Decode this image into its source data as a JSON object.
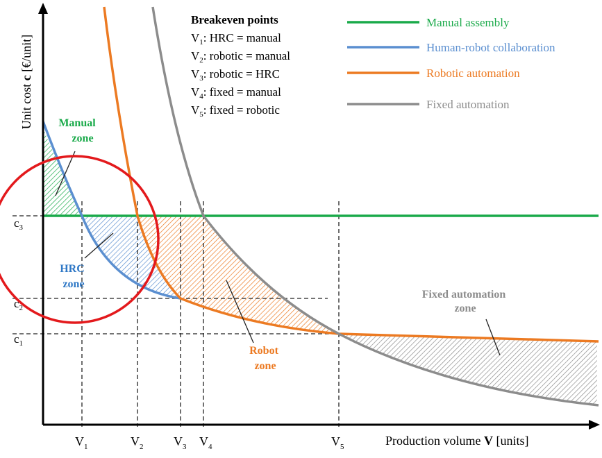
{
  "chart_data": {
    "type": "line",
    "x_axis": {
      "label_prefix": "Production volume ",
      "label_bold": "V",
      "label_suffix": " [units]"
    },
    "y_axis": {
      "label_prefix": "Unit cost ",
      "label_bold": "c",
      "label_suffix": " [€/unit]"
    },
    "breakeven_box": {
      "title": "Breakeven points",
      "items": [
        {
          "sym": "V",
          "sub": "1",
          "text": ":  HRC = manual"
        },
        {
          "sym": "V",
          "sub": "2",
          "text": ":  robotic = manual"
        },
        {
          "sym": "V",
          "sub": "3",
          "text": ":  robotic = HRC"
        },
        {
          "sym": "V",
          "sub": "4",
          "text": ":  fixed = manual"
        },
        {
          "sym": "V",
          "sub": "5",
          "text": ":  fixed = robotic"
        }
      ]
    },
    "legend": [
      {
        "key": "manual",
        "label": "Manual assembly",
        "color": "#1aaa4a"
      },
      {
        "key": "hrc",
        "label": "Human-robot collaboration",
        "color": "#5b8fd0"
      },
      {
        "key": "robotic",
        "label": "Robotic automation",
        "color": "#ec7a22"
      },
      {
        "key": "fixed",
        "label": "Fixed automation",
        "color": "#8c8c8c"
      }
    ],
    "x_ticks": [
      {
        "sym": "V",
        "sub": "1",
        "x": 1
      },
      {
        "sym": "V",
        "sub": "2",
        "x": 2
      },
      {
        "sym": "V",
        "sub": "3",
        "x": 3
      },
      {
        "sym": "V",
        "sub": "4",
        "x": 4
      },
      {
        "sym": "V",
        "sub": "5",
        "x": 5
      }
    ],
    "y_ticks": [
      {
        "sym": "c",
        "sub": "3",
        "y": 3
      },
      {
        "sym": "c",
        "sub": "2",
        "y": 2
      },
      {
        "sym": "c",
        "sub": "1",
        "y": 1
      }
    ],
    "zones": [
      {
        "key": "manual",
        "lines": [
          "Manual",
          "zone"
        ],
        "color": "#1aaa4a"
      },
      {
        "key": "hrc",
        "lines": [
          "HRC",
          "zone"
        ],
        "color": "#2f78c6"
      },
      {
        "key": "robot",
        "lines": [
          "Robot",
          "zone"
        ],
        "color": "#ec7a22"
      },
      {
        "key": "fixed",
        "lines": [
          "Fixed automation",
          "zone"
        ],
        "color": "#8c8c8c"
      }
    ],
    "highlight_circle": {
      "color": "#e3191c"
    }
  }
}
